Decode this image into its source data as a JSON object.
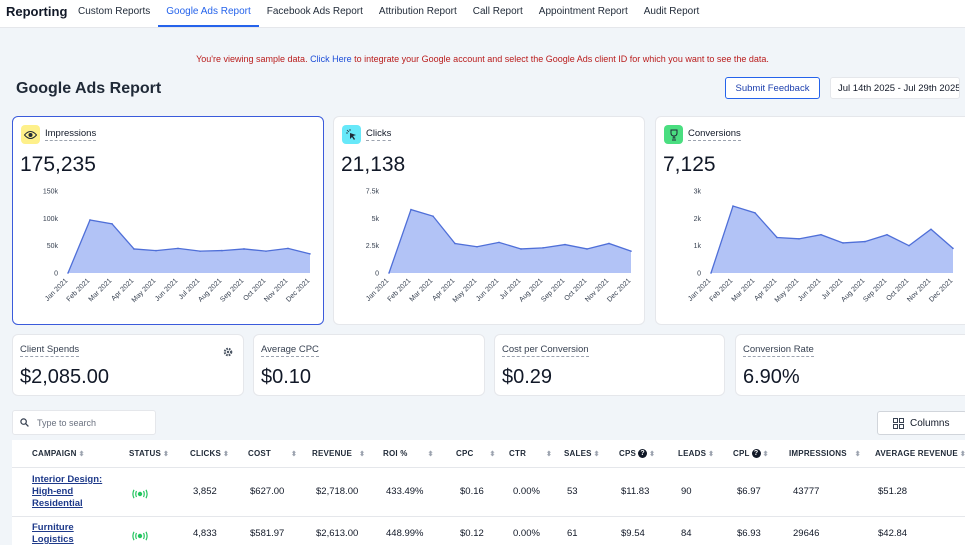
{
  "nav": {
    "brand": "Reporting",
    "tabs": [
      "Custom Reports",
      "Google Ads Report",
      "Facebook Ads Report",
      "Attribution Report",
      "Call Report",
      "Appointment Report",
      "Audit Report"
    ],
    "active_tab": "Google Ads Report"
  },
  "notice": {
    "before": "You're viewing sample data.",
    "link": "Click Here",
    "after": "to integrate your Google account and select the Google Ads client ID for which you want to see the data."
  },
  "header": {
    "title": "Google Ads Report",
    "feedback_label": "Submit Feedback",
    "date_range": "Jul 14th 2025 - Jul 29th 2025"
  },
  "metrics": [
    {
      "label": "Impressions",
      "value": "175,235",
      "icon": "eye-icon",
      "icon_bg": "#fef08a",
      "chart_data": {
        "type": "area",
        "categories": [
          "Jan 2021",
          "Feb 2021",
          "Mar 2021",
          "Apr 2021",
          "May 2021",
          "Jun 2021",
          "Jul 2021",
          "Aug 2021",
          "Sep 2021",
          "Oct 2021",
          "Nov 2021",
          "Dec 2021"
        ],
        "values": [
          0,
          97000,
          90000,
          44000,
          41000,
          45000,
          40000,
          41000,
          44000,
          40000,
          45000,
          35000
        ],
        "ylim": [
          0,
          150000
        ],
        "yticks": [
          "0",
          "50k",
          "100k",
          "150k"
        ]
      }
    },
    {
      "label": "Clicks",
      "value": "21,138",
      "icon": "cursor-click-icon",
      "icon_bg": "#67e8f9",
      "chart_data": {
        "type": "area",
        "categories": [
          "Jan 2021",
          "Feb 2021",
          "Mar 2021",
          "Apr 2021",
          "May 2021",
          "Jun 2021",
          "Jul 2021",
          "Aug 2021",
          "Sep 2021",
          "Oct 2021",
          "Nov 2021",
          "Dec 2021"
        ],
        "values": [
          0,
          5800,
          5200,
          2700,
          2400,
          2800,
          2200,
          2300,
          2600,
          2200,
          2700,
          2000
        ],
        "ylim": [
          0,
          7500
        ],
        "yticks": [
          "0",
          "2.5k",
          "5k",
          "7.5k"
        ]
      }
    },
    {
      "label": "Conversions",
      "value": "7,125",
      "icon": "trophy-icon",
      "icon_bg": "#4ade80",
      "chart_data": {
        "type": "area",
        "categories": [
          "Jan 2021",
          "Feb 2021",
          "Mar 2021",
          "Apr 2021",
          "May 2021",
          "Jun 2021",
          "Jul 2021",
          "Aug 2021",
          "Sep 2021",
          "Oct 2021",
          "Nov 2021",
          "Dec 2021"
        ],
        "values": [
          0,
          2450,
          2200,
          1300,
          1250,
          1400,
          1100,
          1150,
          1400,
          1000,
          1600,
          900
        ],
        "ylim": [
          0,
          3000
        ],
        "yticks": [
          "0",
          "1k",
          "2k",
          "3k"
        ]
      }
    }
  ],
  "kpis": [
    {
      "label": "Client Spends",
      "value": "$2,085.00"
    },
    {
      "label": "Average CPC",
      "value": "$0.10"
    },
    {
      "label": "Cost per Conversion",
      "value": "$0.29"
    },
    {
      "label": "Conversion Rate",
      "value": "6.90%"
    }
  ],
  "search": {
    "placeholder": "Type to search"
  },
  "columns_label": "Columns",
  "table": {
    "headers": [
      "CAMPAIGN",
      "STATUS",
      "CLICKS",
      "COST",
      "REVENUE",
      "ROI %",
      "CPC",
      "CTR",
      "SALES",
      "CPS",
      "LEADS",
      "CPL",
      "IMPRESSIONS",
      "AVERAGE REVENUE"
    ],
    "rows": [
      {
        "campaign": "Interior Design: High-end Residential",
        "clicks": "3,852",
        "cost": "$627.00",
        "revenue": "$2,718.00",
        "roi": "433.49%",
        "cpc": "$0.16",
        "ctr": "0.00%",
        "sales": "53",
        "cps": "$11.83",
        "leads": "90",
        "cpl": "$6.97",
        "impressions": "43777",
        "avg_revenue": "$51.28"
      },
      {
        "campaign": "Furniture Logistics",
        "clicks": "4,833",
        "cost": "$581.97",
        "revenue": "$2,613.00",
        "roi": "448.99%",
        "cpc": "$0.12",
        "ctr": "0.00%",
        "sales": "61",
        "cps": "$9.54",
        "leads": "84",
        "cpl": "$6.93",
        "impressions": "29646",
        "avg_revenue": "$42.84"
      }
    ]
  },
  "colors": {
    "accent": "#2563eb",
    "chart_fill": "#a5b9f5",
    "chart_line": "#4f6fd8",
    "notice_text": "#b91c1c"
  }
}
